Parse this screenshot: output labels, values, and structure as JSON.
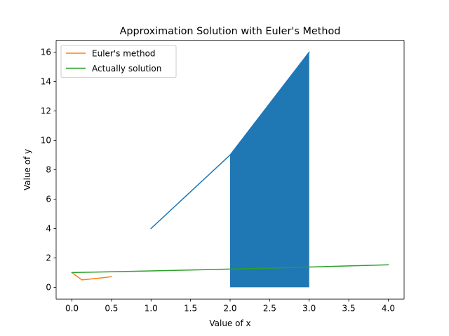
{
  "chart_data": {
    "type": "line",
    "title": "Approximation Solution with Euler's Method",
    "xlabel": "Value of x",
    "ylabel": "Value of y",
    "xlim": [
      -0.2,
      4.2
    ],
    "ylim": [
      -0.8,
      16.8
    ],
    "xticks": [
      0.0,
      0.5,
      1.0,
      1.5,
      2.0,
      2.5,
      3.0,
      3.5,
      4.0
    ],
    "xtick_labels": [
      "0.0",
      "0.5",
      "1.0",
      "1.5",
      "2.0",
      "2.5",
      "3.0",
      "3.5",
      "4.0"
    ],
    "yticks": [
      0,
      2,
      4,
      6,
      8,
      10,
      12,
      14,
      16
    ],
    "ytick_labels": [
      "0",
      "2",
      "4",
      "6",
      "8",
      "10",
      "12",
      "14",
      "16"
    ],
    "grid": false,
    "legend": {
      "placement": "top-left",
      "entries": [
        "Euler's method",
        "Actually solution"
      ]
    },
    "series": [
      {
        "kind": "line",
        "color": "#1f77b4",
        "x": [
          1,
          2,
          3
        ],
        "y": [
          4,
          9,
          16
        ]
      },
      {
        "kind": "fill",
        "color": "#1f77b4",
        "x": [
          2,
          2,
          3,
          3
        ],
        "y": [
          0,
          9,
          16,
          0
        ]
      },
      {
        "kind": "line",
        "name": "Euler's method",
        "color": "#ff7f0e",
        "x": [
          0,
          0.125,
          0.25,
          0.375,
          0.5
        ],
        "y": [
          1,
          0.5,
          0.57,
          0.64,
          0.72
        ]
      },
      {
        "kind": "line",
        "name": "Actually solution",
        "color": "#2ca02c",
        "x": [
          0,
          0.5,
          1,
          1.5,
          2,
          2.5,
          3,
          3.5,
          4
        ],
        "y": [
          1,
          1.055,
          1.113,
          1.174,
          1.237,
          1.305,
          1.376,
          1.452,
          1.531
        ]
      }
    ]
  }
}
